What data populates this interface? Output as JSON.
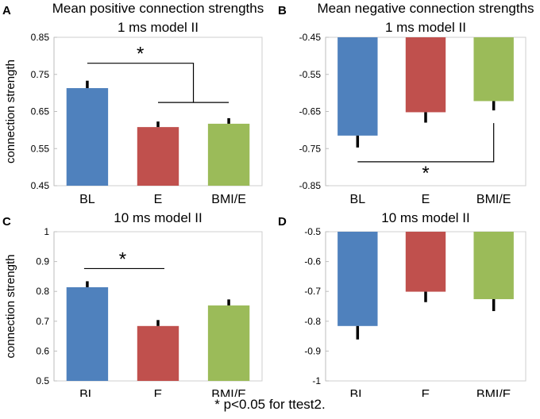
{
  "footnote": "* p<0.05 for ttest2.",
  "colors": {
    "BL": "#4f81bd",
    "E": "#c0504d",
    "BMI/E": "#9bbb59",
    "error": "#000000"
  },
  "chart_data": [
    {
      "panel": "A",
      "type": "bar",
      "title": "Mean positive connection strengths",
      "subtitle": "1 ms model II",
      "ylabel": "connection strength",
      "categories": [
        "BL",
        "E",
        "BMI/E"
      ],
      "values": [
        0.713,
        0.608,
        0.617
      ],
      "errors": [
        0.02,
        0.015,
        0.015
      ],
      "ylim": [
        0.45,
        0.85
      ],
      "yticks": [
        "0.85",
        "0.75",
        "0.65",
        "0.55",
        "0.45"
      ],
      "yticks_values": [
        0.85,
        0.75,
        0.65,
        0.55,
        0.45
      ],
      "baseline": 0.45,
      "significance": {
        "label": "*",
        "from": "BL",
        "to_group": [
          "E",
          "BMI/E"
        ],
        "position": "above"
      }
    },
    {
      "panel": "B",
      "type": "bar",
      "title": "Mean negative connection strengths",
      "subtitle": "1 ms model II",
      "ylabel": "",
      "categories": [
        "BL",
        "E",
        "BMI/E"
      ],
      "values": [
        -0.715,
        -0.652,
        -0.622
      ],
      "errors": [
        0.032,
        0.028,
        0.025
      ],
      "ylim": [
        -0.85,
        -0.45
      ],
      "yticks": [
        "-0.45",
        "-0.55",
        "-0.65",
        "-0.75",
        "-0.85"
      ],
      "yticks_values": [
        -0.45,
        -0.55,
        -0.65,
        -0.75,
        -0.85
      ],
      "baseline": -0.45,
      "significance": {
        "label": "*",
        "from": "BL",
        "to": "BMI/E",
        "position": "below"
      }
    },
    {
      "panel": "C",
      "type": "bar",
      "title": "10 ms model II",
      "subtitle": "",
      "ylabel": "connection strength",
      "categories": [
        "BL",
        "E",
        "BMI/E"
      ],
      "values": [
        0.814,
        0.684,
        0.753
      ],
      "errors": [
        0.02,
        0.02,
        0.02
      ],
      "ylim": [
        0.5,
        1.0
      ],
      "yticks": [
        "1",
        "0.9",
        "0.8",
        "0.7",
        "0.6",
        "0.5"
      ],
      "yticks_values": [
        1.0,
        0.9,
        0.8,
        0.7,
        0.6,
        0.5
      ],
      "baseline": 0.5,
      "significance": {
        "label": "*",
        "from": "BL",
        "to": "E",
        "position": "above"
      }
    },
    {
      "panel": "D",
      "type": "bar",
      "title": "10 ms model II",
      "subtitle": "",
      "ylabel": "",
      "categories": [
        "BL",
        "E",
        "BMI/E"
      ],
      "values": [
        -0.816,
        -0.701,
        -0.726
      ],
      "errors": [
        0.045,
        0.035,
        0.04
      ],
      "ylim": [
        -1.0,
        -0.5
      ],
      "yticks": [
        "-0.5",
        "-0.6",
        "-0.7",
        "-0.8",
        "-0.9",
        "-1"
      ],
      "yticks_values": [
        -0.5,
        -0.6,
        -0.7,
        -0.8,
        -0.9,
        -1.0
      ],
      "baseline": -0.5,
      "significance": null
    }
  ]
}
